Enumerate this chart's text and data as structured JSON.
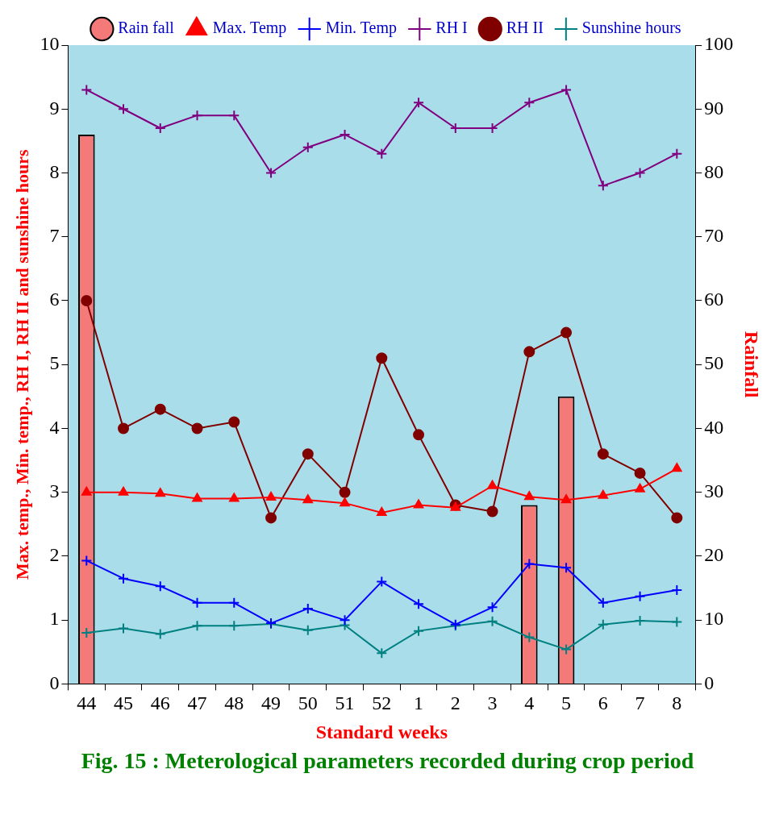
{
  "chart_data": {
    "type": "line",
    "title": "Fig. 15 : Meterological parameters recorded during crop period",
    "xlabel": "Standard weeks",
    "ylabel": "Max. temp., Min. temp., RH I, RH II and sunshine hours",
    "y2label": "Rainfall",
    "categories": [
      "44",
      "45",
      "46",
      "47",
      "48",
      "49",
      "50",
      "51",
      "52",
      "1",
      "2",
      "3",
      "4",
      "5",
      "6",
      "7",
      "8"
    ],
    "series": [
      {
        "name": "Rain fall",
        "type": "bar",
        "axis": "y2",
        "color": "#f47a7a",
        "values": [
          86,
          0,
          0,
          0,
          0,
          0,
          0,
          0,
          0,
          0,
          0,
          0,
          28,
          45,
          0,
          0,
          0
        ]
      },
      {
        "name": "Max. Temp",
        "color": "#ff0000",
        "marker": "triangle",
        "values": [
          3.0,
          3.0,
          2.98,
          2.9,
          2.9,
          2.92,
          2.88,
          2.83,
          2.68,
          2.8,
          2.76,
          3.1,
          2.93,
          2.88,
          2.95,
          3.05,
          3.37
        ]
      },
      {
        "name": "Min. Temp",
        "color": "#0000ff",
        "marker": "cross",
        "values": [
          1.93,
          1.65,
          1.53,
          1.27,
          1.27,
          0.95,
          1.18,
          1.0,
          1.6,
          1.25,
          0.93,
          1.2,
          1.88,
          1.82,
          1.27,
          1.37,
          1.47
        ]
      },
      {
        "name": "RH I",
        "color": "#800080",
        "marker": "cross",
        "values": [
          9.3,
          9.0,
          8.7,
          8.9,
          8.9,
          8.0,
          8.4,
          8.6,
          8.3,
          9.1,
          8.7,
          8.7,
          9.1,
          9.3,
          7.8,
          8.0,
          8.3
        ]
      },
      {
        "name": "RH II",
        "color": "#800000",
        "marker": "circle",
        "values": [
          6.0,
          4.0,
          4.3,
          4.0,
          4.1,
          2.6,
          3.6,
          3.0,
          5.1,
          3.9,
          2.8,
          2.7,
          5.2,
          5.5,
          3.6,
          3.3,
          2.6
        ]
      },
      {
        "name": "Sunshine hours",
        "color": "#008080",
        "marker": "cross",
        "values": [
          0.8,
          0.87,
          0.78,
          0.91,
          0.91,
          0.94,
          0.84,
          0.92,
          0.48,
          0.83,
          0.91,
          0.98,
          0.73,
          0.54,
          0.93,
          0.99,
          0.97
        ]
      }
    ],
    "ylim": [
      0,
      10
    ],
    "yticks": [
      0,
      1,
      2,
      3,
      4,
      5,
      6,
      7,
      8,
      9,
      10
    ],
    "y2lim": [
      0,
      100
    ],
    "y2ticks": [
      0,
      10,
      20,
      30,
      40,
      50,
      60,
      70,
      80,
      90,
      100
    ],
    "grid": false,
    "legend": "top"
  }
}
